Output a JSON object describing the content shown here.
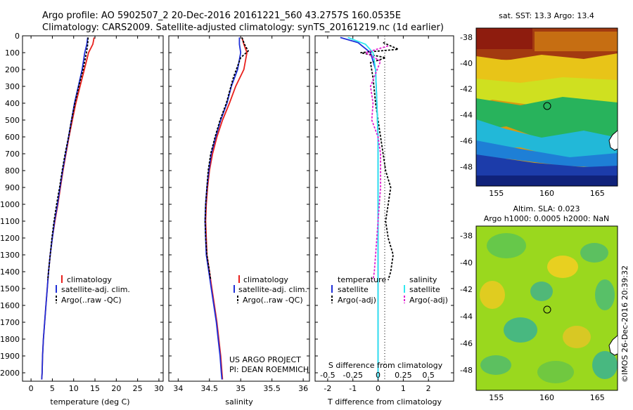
{
  "header": {
    "line1": "Argo profile: AO 5902507_2 20-Dec-2016 20161221_560 43.2757S 160.0535E",
    "line2": "Climatology: CARS2009. Satellite-adjusted climatology: synTS_20161219.nc (1d earlier)"
  },
  "colors": {
    "red": "#e8201c",
    "blue": "#1f2fd8",
    "black": "#000000",
    "cyan": "#2ee8f0",
    "magenta": "#e020d0"
  },
  "credit": "©IMOS 26-Dec-2016 20:39:32",
  "chart_data": [
    {
      "type": "line",
      "xlabel": "temperature (deg C)",
      "xticks": [
        "0",
        "5",
        "10",
        "15",
        "20",
        "25",
        "30"
      ],
      "xlim": [
        -2,
        31
      ],
      "ylim": [
        0,
        2050
      ],
      "yticks": [
        "0",
        "100",
        "200",
        "300",
        "400",
        "500",
        "600",
        "700",
        "800",
        "900",
        "1000",
        "1100",
        "1200",
        "1300",
        "1400",
        "1500",
        "1600",
        "1700",
        "1800",
        "1900",
        "2000"
      ],
      "legend": [
        "climatology",
        "satellite-adj. clim.",
        "Argo(..raw -QC)"
      ],
      "series": [
        {
          "name": "climatology",
          "color": "red",
          "style": "solid",
          "points": [
            [
              14.8,
              10
            ],
            [
              14.5,
              50
            ],
            [
              13.5,
              100
            ],
            [
              12.5,
              200
            ],
            [
              11.5,
              300
            ],
            [
              10.5,
              400
            ],
            [
              9.7,
              500
            ],
            [
              8.9,
              600
            ],
            [
              8.2,
              700
            ],
            [
              7.5,
              800
            ],
            [
              6.9,
              900
            ],
            [
              6.3,
              1000
            ],
            [
              5.6,
              1100
            ],
            [
              5.0,
              1200
            ],
            [
              4.5,
              1300
            ],
            [
              4.1,
              1400
            ],
            [
              3.8,
              1500
            ],
            [
              3.5,
              1600
            ],
            [
              3.2,
              1700
            ],
            [
              2.9,
              1800
            ],
            [
              2.7,
              1900
            ],
            [
              2.6,
              2000
            ],
            [
              2.5,
              2040
            ]
          ]
        },
        {
          "name": "satellite-adj. clim.",
          "color": "blue",
          "style": "solid",
          "points": [
            [
              13.3,
              10
            ],
            [
              13.1,
              50
            ],
            [
              12.6,
              100
            ],
            [
              12.0,
              200
            ],
            [
              11.1,
              300
            ],
            [
              10.2,
              400
            ],
            [
              9.5,
              500
            ],
            [
              8.8,
              600
            ],
            [
              8.1,
              700
            ],
            [
              7.4,
              800
            ],
            [
              6.8,
              900
            ],
            [
              6.2,
              1000
            ],
            [
              5.5,
              1100
            ],
            [
              5.0,
              1200
            ],
            [
              4.5,
              1300
            ],
            [
              4.1,
              1400
            ],
            [
              3.8,
              1500
            ],
            [
              3.5,
              1600
            ],
            [
              3.2,
              1700
            ],
            [
              2.9,
              1800
            ],
            [
              2.7,
              1900
            ],
            [
              2.6,
              2000
            ],
            [
              2.5,
              2040
            ]
          ]
        },
        {
          "name": "Argo(..raw -QC)",
          "color": "black",
          "style": "dashed",
          "points": [
            [
              13.4,
              10
            ],
            [
              13.3,
              50
            ],
            [
              13.0,
              100
            ],
            [
              12.2,
              200
            ],
            [
              11.2,
              300
            ],
            [
              10.3,
              400
            ],
            [
              9.5,
              500
            ],
            [
              8.8,
              600
            ],
            [
              8.0,
              700
            ],
            [
              7.3,
              800
            ],
            [
              6.7,
              900
            ],
            [
              6.0,
              1000
            ],
            [
              5.4,
              1100
            ],
            [
              4.9,
              1200
            ],
            [
              4.5,
              1300
            ],
            [
              4.1,
              1400
            ],
            [
              3.9,
              1450
            ]
          ]
        }
      ]
    },
    {
      "type": "line",
      "xlabel": "salinity",
      "xticks": [
        "34",
        "34.5",
        "35",
        "35.5",
        "36"
      ],
      "xlim": [
        33.85,
        36.1
      ],
      "ylim": [
        0,
        2050
      ],
      "legend": [
        "climatology",
        "satellite-adj. clim.",
        "Argo(..raw -QC)"
      ],
      "annotation": [
        "US ARGO PROJECT",
        "PI: DEAN ROEMMICH"
      ],
      "series": [
        {
          "name": "climatology",
          "color": "red",
          "style": "solid",
          "points": [
            [
              35.02,
              10
            ],
            [
              35.05,
              50
            ],
            [
              35.1,
              100
            ],
            [
              35.05,
              200
            ],
            [
              34.92,
              300
            ],
            [
              34.82,
              400
            ],
            [
              34.71,
              500
            ],
            [
              34.62,
              600
            ],
            [
              34.55,
              700
            ],
            [
              34.5,
              800
            ],
            [
              34.47,
              900
            ],
            [
              34.45,
              1000
            ],
            [
              34.44,
              1100
            ],
            [
              34.45,
              1200
            ],
            [
              34.46,
              1300
            ],
            [
              34.5,
              1400
            ],
            [
              34.54,
              1500
            ],
            [
              34.58,
              1600
            ],
            [
              34.62,
              1700
            ],
            [
              34.65,
              1800
            ],
            [
              34.68,
              1900
            ],
            [
              34.7,
              2000
            ],
            [
              34.71,
              2040
            ]
          ]
        },
        {
          "name": "satellite-adj. clim.",
          "color": "blue",
          "style": "solid",
          "points": [
            [
              34.98,
              10
            ],
            [
              34.98,
              50
            ],
            [
              35.0,
              100
            ],
            [
              34.95,
              200
            ],
            [
              34.85,
              300
            ],
            [
              34.78,
              400
            ],
            [
              34.68,
              500
            ],
            [
              34.6,
              600
            ],
            [
              34.53,
              700
            ],
            [
              34.49,
              800
            ],
            [
              34.46,
              900
            ],
            [
              34.44,
              1000
            ],
            [
              34.43,
              1100
            ],
            [
              34.44,
              1200
            ],
            [
              34.45,
              1300
            ],
            [
              34.49,
              1400
            ],
            [
              34.53,
              1500
            ],
            [
              34.57,
              1600
            ],
            [
              34.61,
              1700
            ],
            [
              34.64,
              1800
            ],
            [
              34.67,
              1900
            ],
            [
              34.69,
              2000
            ],
            [
              34.7,
              2040
            ]
          ]
        },
        {
          "name": "Argo(..raw -QC)",
          "color": "black",
          "style": "dashed",
          "points": [
            [
              35.02,
              10
            ],
            [
              35.06,
              50
            ],
            [
              35.12,
              90
            ],
            [
              35.0,
              130
            ],
            [
              34.88,
              250
            ],
            [
              34.77,
              400
            ],
            [
              34.67,
              500
            ],
            [
              34.59,
              600
            ],
            [
              34.52,
              700
            ],
            [
              34.48,
              800
            ],
            [
              34.46,
              900
            ],
            [
              34.44,
              1000
            ],
            [
              34.43,
              1100
            ],
            [
              34.44,
              1200
            ],
            [
              34.46,
              1300
            ],
            [
              34.5,
              1400
            ],
            [
              34.52,
              1450
            ]
          ]
        }
      ]
    },
    {
      "type": "line",
      "xlabel": "T difference from climatology",
      "xlabel_top": "S difference from climatology",
      "xticks": [
        "-2",
        "-1",
        "0",
        "1",
        "2"
      ],
      "xticks_top": [
        "-0.5",
        "-0.25",
        "0",
        "0.25",
        "0.5"
      ],
      "xlim": [
        -2.5,
        3.0
      ],
      "ylim": [
        0,
        2050
      ],
      "legend_headers": [
        "temperature",
        "salinity"
      ],
      "legend": [
        [
          "satellite",
          "Argo(-adj)"
        ],
        [
          "satellite",
          "Argo(-adj)"
        ]
      ],
      "series": [
        {
          "name": "satellite",
          "group": "temperature",
          "color": "blue",
          "style": "solid",
          "points": [
            [
              -1.5,
              10
            ],
            [
              -0.8,
              40
            ],
            [
              -0.3,
              100
            ],
            [
              -0.1,
              200
            ],
            [
              -0.05,
              400
            ],
            [
              0,
              600
            ],
            [
              0,
              1000
            ],
            [
              0,
              1400
            ],
            [
              0,
              2040
            ]
          ]
        },
        {
          "name": "Argo(-adj)",
          "group": "temperature",
          "color": "black",
          "style": "dashed",
          "points": [
            [
              0.2,
              40
            ],
            [
              0.8,
              80
            ],
            [
              -0.7,
              100
            ],
            [
              0.3,
              130
            ],
            [
              -0.3,
              160
            ],
            [
              -0.2,
              250
            ],
            [
              -0.1,
              400
            ],
            [
              0,
              500
            ],
            [
              0.1,
              600
            ],
            [
              0.2,
              700
            ],
            [
              0.3,
              800
            ],
            [
              0.5,
              900
            ],
            [
              0.4,
              1000
            ],
            [
              0.3,
              1100
            ],
            [
              0.4,
              1200
            ],
            [
              0.6,
              1300
            ],
            [
              0.5,
              1400
            ],
            [
              0.4,
              1450
            ]
          ]
        },
        {
          "name": "satellite",
          "group": "salinity",
          "color": "cyan",
          "style": "solid",
          "points": [
            [
              -1.2,
              10
            ],
            [
              -0.5,
              50
            ],
            [
              -0.2,
              100
            ],
            [
              -0.1,
              200
            ],
            [
              -0.05,
              400
            ],
            [
              0,
              600
            ],
            [
              0,
              1000
            ],
            [
              0,
              1400
            ],
            [
              0,
              2040
            ]
          ]
        },
        {
          "name": "Argo(-adj)",
          "group": "salinity",
          "color": "magenta",
          "style": "dashed",
          "points": [
            [
              0.4,
              60
            ],
            [
              -0.5,
              100
            ],
            [
              0.1,
              150
            ],
            [
              -0.3,
              300
            ],
            [
              -0.2,
              400
            ],
            [
              -0.25,
              500
            ],
            [
              0,
              600
            ],
            [
              0.1,
              700
            ],
            [
              0.1,
              800
            ],
            [
              0.1,
              900
            ],
            [
              0.05,
              1000
            ],
            [
              0,
              1100
            ],
            [
              -0.05,
              1200
            ],
            [
              -0.1,
              1300
            ],
            [
              -0.15,
              1400
            ],
            [
              -0.2,
              1450
            ]
          ]
        }
      ]
    },
    {
      "type": "heatmap",
      "title": "sat. SST: 13.3 Argo: 13.4",
      "xticks": [
        "155",
        "160",
        "165"
      ],
      "yticks": [
        "-38",
        "-40",
        "-42",
        "-44",
        "-46",
        "-48"
      ],
      "xlim": [
        153,
        167
      ],
      "ylim": [
        -49.5,
        -37.3
      ],
      "marker": [
        160.05,
        -43.28
      ]
    },
    {
      "type": "heatmap",
      "title": [
        "Altim. SLA: 0.023",
        "Argo h1000: 0.0005 h2000: NaN"
      ],
      "xticks": [
        "155",
        "160",
        "165"
      ],
      "yticks": [
        "-38",
        "-40",
        "-42",
        "-44",
        "-46",
        "-48"
      ],
      "xlim": [
        153,
        167
      ],
      "ylim": [
        -49.5,
        -37.3
      ],
      "marker": [
        160.05,
        -43.28
      ]
    }
  ]
}
